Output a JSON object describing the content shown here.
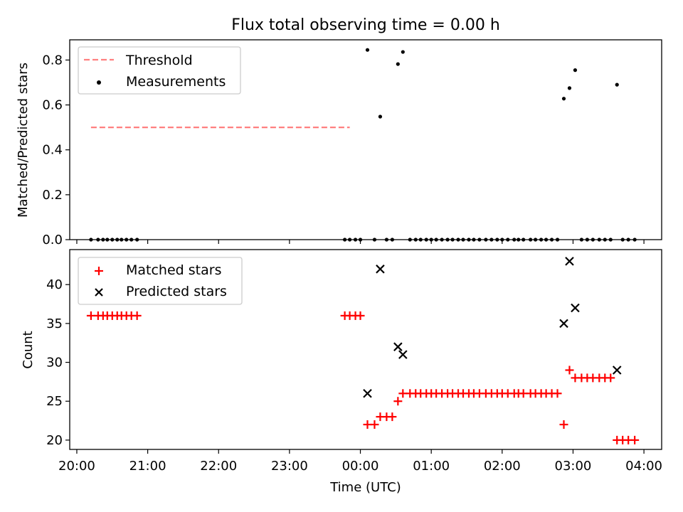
{
  "chart_data": [
    {
      "type": "scatter",
      "title": "Flux total observing time = 0.00 h",
      "xlabel": "",
      "ylabel": "Matched/Predicted stars",
      "ylim": [
        0,
        0.89
      ],
      "yticks": [
        0.0,
        0.2,
        0.4,
        0.6,
        0.8
      ],
      "ytick_labels": [
        "0.0",
        "0.2",
        "0.4",
        "0.6",
        "0.8"
      ],
      "legend": {
        "position": "top-left",
        "entries": [
          "Threshold",
          "Measurements"
        ]
      },
      "threshold": {
        "name": "Threshold",
        "value": 0.5,
        "x_start": 20.2,
        "x_end": 23.85,
        "color": "#ff7f7f"
      },
      "series": [
        {
          "name": "Measurements",
          "color": "#000000",
          "points": [
            [
              20.2,
              0
            ],
            [
              20.3,
              0
            ],
            [
              20.37,
              0
            ],
            [
              20.43,
              0
            ],
            [
              20.5,
              0
            ],
            [
              20.57,
              0
            ],
            [
              20.63,
              0
            ],
            [
              20.7,
              0
            ],
            [
              20.77,
              0
            ],
            [
              20.85,
              0
            ],
            [
              23.78,
              0
            ],
            [
              23.85,
              0
            ],
            [
              23.93,
              0
            ],
            [
              24.0,
              0
            ],
            [
              24.1,
              0.845
            ],
            [
              24.2,
              0
            ],
            [
              24.28,
              0.548
            ],
            [
              24.37,
              0
            ],
            [
              24.45,
              0
            ],
            [
              24.53,
              0.782
            ],
            [
              24.6,
              0.836
            ],
            [
              24.7,
              0
            ],
            [
              24.78,
              0
            ],
            [
              24.85,
              0
            ],
            [
              24.93,
              0
            ],
            [
              25.0,
              0
            ],
            [
              25.07,
              0
            ],
            [
              25.15,
              0
            ],
            [
              25.23,
              0
            ],
            [
              25.3,
              0
            ],
            [
              25.38,
              0
            ],
            [
              25.45,
              0
            ],
            [
              25.53,
              0
            ],
            [
              25.6,
              0
            ],
            [
              25.68,
              0
            ],
            [
              25.77,
              0
            ],
            [
              25.85,
              0
            ],
            [
              25.93,
              0
            ],
            [
              26.0,
              0
            ],
            [
              26.08,
              0
            ],
            [
              26.17,
              0
            ],
            [
              26.23,
              0
            ],
            [
              26.3,
              0
            ],
            [
              26.4,
              0
            ],
            [
              26.47,
              0
            ],
            [
              26.55,
              0
            ],
            [
              26.62,
              0
            ],
            [
              26.7,
              0
            ],
            [
              26.78,
              0
            ],
            [
              26.87,
              0.628
            ],
            [
              26.95,
              0.675
            ],
            [
              27.03,
              0.755
            ],
            [
              27.12,
              0
            ],
            [
              27.2,
              0
            ],
            [
              27.28,
              0
            ],
            [
              27.37,
              0
            ],
            [
              27.45,
              0
            ],
            [
              27.53,
              0
            ],
            [
              27.62,
              0.69
            ],
            [
              27.7,
              0
            ],
            [
              27.78,
              0
            ],
            [
              27.87,
              0
            ]
          ]
        }
      ]
    },
    {
      "type": "scatter",
      "title": "",
      "xlabel": "Time (UTC)",
      "ylabel": "Count",
      "ylim": [
        18.8,
        44.5
      ],
      "yticks": [
        20,
        25,
        30,
        35,
        40
      ],
      "ytick_labels": [
        "20",
        "25",
        "30",
        "35",
        "40"
      ],
      "xticks": [
        20,
        21,
        22,
        23,
        24,
        25,
        26,
        27,
        28
      ],
      "xtick_labels": [
        "20:00",
        "21:00",
        "22:00",
        "23:00",
        "00:00",
        "01:00",
        "02:00",
        "03:00",
        "04:00"
      ],
      "xlim": [
        19.9,
        28.25
      ],
      "legend": {
        "position": "top-left",
        "entries": [
          "Matched stars",
          "Predicted stars"
        ]
      },
      "series": [
        {
          "name": "Matched stars",
          "color": "#ff0000",
          "marker": "plus",
          "points": [
            [
              20.2,
              36
            ],
            [
              20.3,
              36
            ],
            [
              20.37,
              36
            ],
            [
              20.43,
              36
            ],
            [
              20.5,
              36
            ],
            [
              20.57,
              36
            ],
            [
              20.63,
              36
            ],
            [
              20.7,
              36
            ],
            [
              20.77,
              36
            ],
            [
              20.85,
              36
            ],
            [
              23.78,
              36
            ],
            [
              23.85,
              36
            ],
            [
              23.93,
              36
            ],
            [
              24.0,
              36
            ],
            [
              24.1,
              22
            ],
            [
              24.2,
              22
            ],
            [
              24.28,
              23
            ],
            [
              24.37,
              23
            ],
            [
              24.45,
              23
            ],
            [
              24.53,
              25
            ],
            [
              24.6,
              26
            ],
            [
              24.7,
              26
            ],
            [
              24.78,
              26
            ],
            [
              24.85,
              26
            ],
            [
              24.93,
              26
            ],
            [
              25.0,
              26
            ],
            [
              25.07,
              26
            ],
            [
              25.15,
              26
            ],
            [
              25.23,
              26
            ],
            [
              25.3,
              26
            ],
            [
              25.38,
              26
            ],
            [
              25.45,
              26
            ],
            [
              25.53,
              26
            ],
            [
              25.6,
              26
            ],
            [
              25.68,
              26
            ],
            [
              25.77,
              26
            ],
            [
              25.85,
              26
            ],
            [
              25.93,
              26
            ],
            [
              26.0,
              26
            ],
            [
              26.08,
              26
            ],
            [
              26.17,
              26
            ],
            [
              26.23,
              26
            ],
            [
              26.3,
              26
            ],
            [
              26.4,
              26
            ],
            [
              26.47,
              26
            ],
            [
              26.55,
              26
            ],
            [
              26.62,
              26
            ],
            [
              26.7,
              26
            ],
            [
              26.78,
              26
            ],
            [
              26.87,
              22
            ],
            [
              26.95,
              29
            ],
            [
              27.03,
              28
            ],
            [
              27.12,
              28
            ],
            [
              27.2,
              28
            ],
            [
              27.28,
              28
            ],
            [
              27.37,
              28
            ],
            [
              27.45,
              28
            ],
            [
              27.53,
              28
            ],
            [
              27.62,
              20
            ],
            [
              27.7,
              20
            ],
            [
              27.78,
              20
            ],
            [
              27.87,
              20
            ]
          ]
        },
        {
          "name": "Predicted stars",
          "color": "#000000",
          "marker": "x",
          "points": [
            [
              24.1,
              26
            ],
            [
              24.28,
              42
            ],
            [
              24.53,
              32
            ],
            [
              24.6,
              31
            ],
            [
              26.87,
              35
            ],
            [
              26.95,
              43
            ],
            [
              27.03,
              37
            ],
            [
              27.62,
              29
            ]
          ]
        }
      ]
    }
  ]
}
